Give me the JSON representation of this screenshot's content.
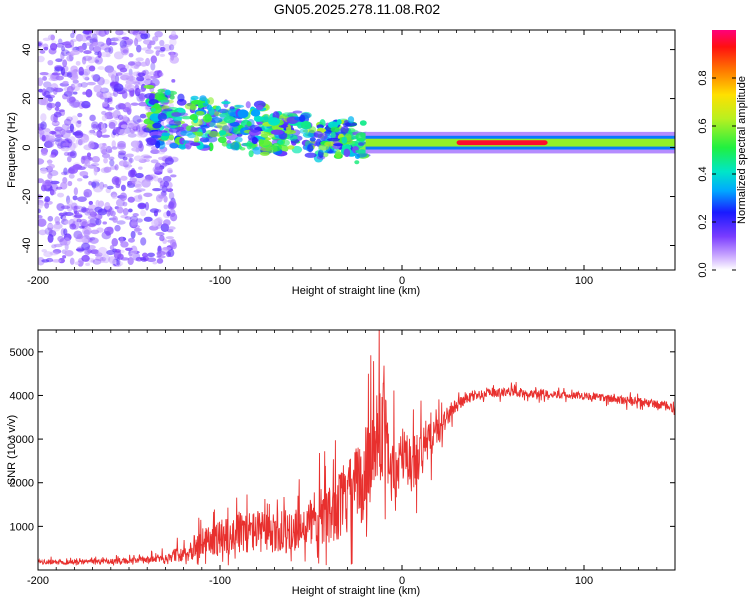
{
  "title": "GN05.2025.278.11.08.R02",
  "chart_data": [
    {
      "type": "heatmap",
      "title": "GN05.2025.278.11.08.R02",
      "xlabel": "Height of straight line (km)",
      "ylabel": "Frequency (Hz)",
      "xlim": [
        -200,
        150
      ],
      "ylim": [
        -50,
        48
      ],
      "x_ticks": [
        -200,
        -100,
        0,
        100
      ],
      "y_ticks": [
        -40,
        -20,
        0,
        20,
        40
      ],
      "colorbar": {
        "label": "Normalized spectral amplitude",
        "range": [
          0,
          1
        ],
        "ticks": [
          "0.0",
          "0.2",
          "0.4",
          "0.6",
          "0.8"
        ]
      },
      "bands": [
        {
          "x_start": -200,
          "x_end": -125,
          "y_center": 0,
          "y_halfwidth": 48,
          "amplitude": 0.12,
          "pattern": "scattered noise"
        },
        {
          "x_start": -140,
          "x_end": -20,
          "y_center": 5,
          "y_halfwidth": 12,
          "amplitude": 0.35,
          "pattern": "clustered"
        },
        {
          "x_start": -20,
          "x_end": 150,
          "y_center": 2,
          "y_halfwidth": 2,
          "amplitude": 0.6,
          "pattern": "continuous"
        },
        {
          "x_start": 30,
          "x_end": 80,
          "y_center": 2,
          "y_halfwidth": 1,
          "amplitude": 0.95,
          "pattern": "peak"
        }
      ]
    },
    {
      "type": "line",
      "xlabel": "Height of straight line (km)",
      "ylabel": "SNR (10 * v/v)",
      "xlim": [
        -200,
        150
      ],
      "ylim": [
        0,
        5500
      ],
      "x_ticks": [
        -200,
        -100,
        0,
        100
      ],
      "y_ticks": [
        1000,
        2000,
        3000,
        4000,
        5000
      ],
      "color": "#e8302e",
      "series": [
        {
          "name": "SNR",
          "x": [
            -200,
            -190,
            -180,
            -170,
            -160,
            -150,
            -140,
            -130,
            -120,
            -110,
            -100,
            -90,
            -80,
            -70,
            -60,
            -50,
            -40,
            -30,
            -20,
            -15,
            -10,
            -5,
            0,
            5,
            10,
            15,
            20,
            25,
            30,
            40,
            50,
            60,
            70,
            80,
            90,
            100,
            110,
            120,
            130,
            140,
            150
          ],
          "y": [
            180,
            180,
            190,
            200,
            200,
            210,
            230,
            280,
            400,
            600,
            750,
            850,
            900,
            800,
            950,
            1100,
            1300,
            1600,
            2200,
            3000,
            3300,
            2200,
            2600,
            2400,
            2700,
            3000,
            3200,
            3500,
            3800,
            4000,
            4050,
            4100,
            4050,
            4050,
            4000,
            4000,
            3950,
            3900,
            3850,
            3800,
            3700
          ],
          "noise_amplitude": [
            80,
            80,
            80,
            80,
            90,
            90,
            120,
            150,
            300,
            500,
            600,
            700,
            700,
            700,
            800,
            900,
            1000,
            1200,
            1600,
            1800,
            1600,
            1200,
            1000,
            1000,
            900,
            700,
            500,
            300,
            200,
            150,
            150,
            150,
            150,
            130,
            120,
            120,
            120,
            140,
            150,
            150,
            150
          ]
        }
      ]
    }
  ]
}
